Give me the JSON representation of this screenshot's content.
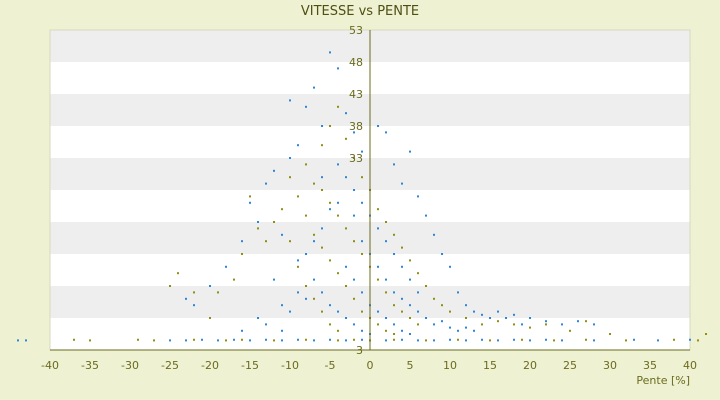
{
  "chart_data": {
    "type": "scatter",
    "title": "VITESSE vs PENTE",
    "xlabel": "Pente [%]",
    "ylabel": "",
    "xlim": [
      -40,
      40
    ],
    "ylim": [
      3,
      53
    ],
    "x_ticks": [
      -40,
      -35,
      -30,
      -25,
      -20,
      -15,
      -10,
      -5,
      0,
      5,
      10,
      15,
      20,
      25,
      30,
      35,
      40
    ],
    "y_ticks": [
      3,
      8,
      13,
      18,
      23,
      28,
      33,
      38,
      43,
      48,
      53
    ],
    "y_tick_labels": [
      "3",
      "",
      "",
      "",
      "",
      "",
      "33",
      "38",
      "43",
      "48",
      "53"
    ],
    "grid": "alternating horizontal bands",
    "colors": {
      "series_blue": "#2e86d6",
      "series_olive": "#8f8f12",
      "band": "#eeeeee",
      "plot_bg": "#ffffff",
      "axis": "#6b6b1e",
      "page_bg": "#eef2d2"
    },
    "series": [
      {
        "color": "blue",
        "points": [
          [
            -44,
            4.5
          ],
          [
            -43,
            4.5
          ],
          [
            -25,
            4.5
          ],
          [
            -23,
            4.5
          ],
          [
            -21,
            4.6
          ],
          [
            -19,
            4.5
          ],
          [
            -17,
            4.6
          ],
          [
            -15,
            4.5
          ],
          [
            -13,
            4.6
          ],
          [
            -11,
            4.5
          ],
          [
            -9,
            4.6
          ],
          [
            -7,
            4.5
          ],
          [
            -5,
            4.6
          ],
          [
            -3,
            4.5
          ],
          [
            -1,
            4.6
          ],
          [
            2,
            4.5
          ],
          [
            4,
            4.6
          ],
          [
            6,
            4.5
          ],
          [
            8,
            4.5
          ],
          [
            10,
            4.6
          ],
          [
            12,
            4.5
          ],
          [
            14,
            4.6
          ],
          [
            16,
            4.5
          ],
          [
            18,
            4.6
          ],
          [
            20,
            4.5
          ],
          [
            22,
            4.6
          ],
          [
            24,
            4.5
          ],
          [
            28,
            4.5
          ],
          [
            33,
            4.6
          ],
          [
            36,
            4.5
          ],
          [
            40,
            4.6
          ],
          [
            -23,
            11
          ],
          [
            -22,
            10
          ],
          [
            -20,
            13
          ],
          [
            -18,
            16
          ],
          [
            -16,
            20
          ],
          [
            -15,
            26
          ],
          [
            -14,
            23
          ],
          [
            -13,
            29
          ],
          [
            -12,
            31
          ],
          [
            -11,
            21
          ],
          [
            -10,
            33
          ],
          [
            -9,
            35
          ],
          [
            -10,
            42
          ],
          [
            -8,
            41
          ],
          [
            -7,
            44
          ],
          [
            -6,
            38
          ],
          [
            -5,
            49.5
          ],
          [
            -4,
            47
          ],
          [
            -3,
            40
          ],
          [
            -2,
            37
          ],
          [
            -1,
            34
          ],
          [
            1,
            38
          ],
          [
            2,
            37
          ],
          [
            3,
            32
          ],
          [
            4,
            29
          ],
          [
            5,
            34
          ],
          [
            6,
            27
          ],
          [
            7,
            24
          ],
          [
            8,
            21
          ],
          [
            9,
            18
          ],
          [
            10,
            16
          ],
          [
            11,
            12
          ],
          [
            12,
            10
          ],
          [
            13,
            9
          ],
          [
            14,
            8.5
          ],
          [
            15,
            8
          ],
          [
            16,
            9
          ],
          [
            17,
            8
          ],
          [
            18,
            8.5
          ],
          [
            19,
            7
          ],
          [
            20,
            8
          ],
          [
            22,
            7.5
          ],
          [
            24,
            7
          ],
          [
            26,
            7.5
          ],
          [
            28,
            7
          ],
          [
            -3,
            30
          ],
          [
            -2,
            28
          ],
          [
            -1,
            26
          ],
          [
            0,
            24
          ],
          [
            1,
            22
          ],
          [
            2,
            20
          ],
          [
            3,
            18
          ],
          [
            4,
            16
          ],
          [
            5,
            14
          ],
          [
            6,
            12
          ],
          [
            -4,
            26
          ],
          [
            -5,
            25
          ],
          [
            -6,
            22
          ],
          [
            -7,
            20
          ],
          [
            -8,
            18
          ],
          [
            -9,
            17
          ],
          [
            -6,
            30
          ],
          [
            -4,
            32
          ],
          [
            -2,
            24
          ],
          [
            -1,
            20
          ],
          [
            0,
            18
          ],
          [
            1,
            16
          ],
          [
            2,
            14
          ],
          [
            3,
            12
          ],
          [
            4,
            11
          ],
          [
            5,
            10
          ],
          [
            6,
            9
          ],
          [
            7,
            8
          ],
          [
            8,
            7
          ],
          [
            9,
            7.5
          ],
          [
            10,
            6.5
          ],
          [
            11,
            6
          ],
          [
            12,
            6.5
          ],
          [
            13,
            6
          ],
          [
            -3,
            16
          ],
          [
            -2,
            14
          ],
          [
            -1,
            12
          ],
          [
            0,
            10
          ],
          [
            1,
            9
          ],
          [
            2,
            8
          ],
          [
            3,
            7
          ],
          [
            4,
            6
          ],
          [
            5,
            5.5
          ],
          [
            -7,
            14
          ],
          [
            -6,
            12
          ],
          [
            -5,
            10
          ],
          [
            -4,
            9
          ],
          [
            -3,
            8
          ],
          [
            -2,
            7
          ],
          [
            -1,
            6
          ],
          [
            0,
            5.5
          ],
          [
            -12,
            14
          ],
          [
            -11,
            10
          ],
          [
            -10,
            9
          ],
          [
            -9,
            12
          ],
          [
            -8,
            11
          ],
          [
            -14,
            8
          ],
          [
            -16,
            6
          ],
          [
            -13,
            7
          ],
          [
            -11,
            6
          ]
        ]
      },
      {
        "color": "olive",
        "points": [
          [
            -37,
            4.6
          ],
          [
            -35,
            4.5
          ],
          [
            -29,
            4.6
          ],
          [
            -27,
            4.5
          ],
          [
            -22,
            4.6
          ],
          [
            -18,
            4.5
          ],
          [
            -16,
            4.6
          ],
          [
            -12,
            4.5
          ],
          [
            -8,
            4.6
          ],
          [
            -4,
            4.5
          ],
          [
            -2,
            4.6
          ],
          [
            0,
            4.5
          ],
          [
            3,
            4.6
          ],
          [
            7,
            4.5
          ],
          [
            11,
            4.6
          ],
          [
            15,
            4.5
          ],
          [
            19,
            4.6
          ],
          [
            23,
            4.5
          ],
          [
            27,
            4.6
          ],
          [
            32,
            4.5
          ],
          [
            38,
            4.6
          ],
          [
            42,
            5.5
          ],
          [
            41,
            4.5
          ],
          [
            -25,
            13
          ],
          [
            -24,
            15
          ],
          [
            -22,
            12
          ],
          [
            -20,
            8
          ],
          [
            -19,
            12
          ],
          [
            -17,
            14
          ],
          [
            -16,
            18
          ],
          [
            -15,
            27
          ],
          [
            -14,
            22
          ],
          [
            -13,
            20
          ],
          [
            -12,
            23
          ],
          [
            -11,
            25
          ],
          [
            -10,
            30
          ],
          [
            -9,
            27
          ],
          [
            -8,
            32
          ],
          [
            -7,
            29
          ],
          [
            -6,
            35
          ],
          [
            -5,
            38
          ],
          [
            -4,
            41
          ],
          [
            -3,
            36
          ],
          [
            -2,
            33
          ],
          [
            -1,
            30
          ],
          [
            0,
            28
          ],
          [
            1,
            25
          ],
          [
            2,
            23
          ],
          [
            3,
            21
          ],
          [
            4,
            19
          ],
          [
            5,
            17
          ],
          [
            6,
            15
          ],
          [
            7,
            13
          ],
          [
            8,
            11
          ],
          [
            9,
            10
          ],
          [
            10,
            9
          ],
          [
            12,
            8
          ],
          [
            14,
            7
          ],
          [
            16,
            7.5
          ],
          [
            18,
            7
          ],
          [
            20,
            6.5
          ],
          [
            22,
            7
          ],
          [
            25,
            6
          ],
          [
            27,
            7.5
          ],
          [
            30,
            5.5
          ],
          [
            -6,
            28
          ],
          [
            -5,
            26
          ],
          [
            -4,
            24
          ],
          [
            -3,
            22
          ],
          [
            -2,
            20
          ],
          [
            -1,
            18
          ],
          [
            0,
            16
          ],
          [
            1,
            14
          ],
          [
            2,
            12
          ],
          [
            3,
            10
          ],
          [
            4,
            9
          ],
          [
            5,
            8
          ],
          [
            6,
            7
          ],
          [
            -8,
            24
          ],
          [
            -7,
            21
          ],
          [
            -6,
            19
          ],
          [
            -5,
            17
          ],
          [
            -4,
            15
          ],
          [
            -3,
            13
          ],
          [
            -2,
            11
          ],
          [
            -1,
            9
          ],
          [
            0,
            8
          ],
          [
            1,
            7
          ],
          [
            2,
            6
          ],
          [
            3,
            5.5
          ],
          [
            -10,
            20
          ],
          [
            -9,
            16
          ],
          [
            -8,
            13
          ],
          [
            -7,
            11
          ],
          [
            -6,
            9
          ],
          [
            -5,
            7
          ],
          [
            -4,
            6
          ]
        ]
      }
    ]
  }
}
